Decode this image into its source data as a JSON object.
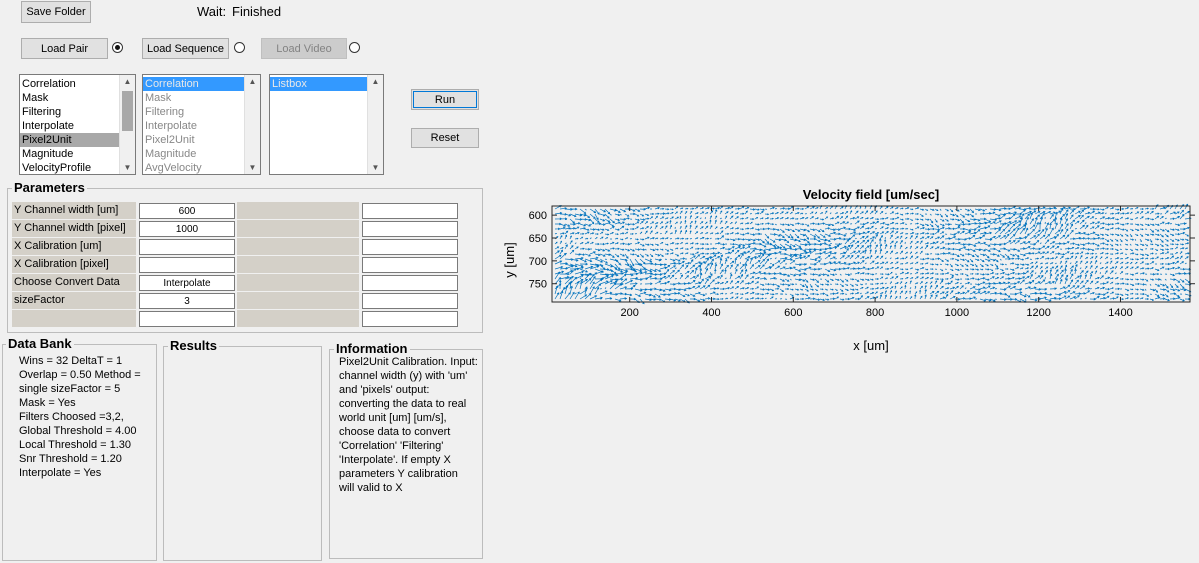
{
  "toolbar": {
    "save_folder_label": "Save Folder",
    "wait_label": "Wait:",
    "wait_status": "Finished",
    "load_pair_label": "Load Pair",
    "load_sequence_label": "Load Sequence",
    "load_video_label": "Load Video",
    "run_label": "Run",
    "reset_label": "Reset"
  },
  "lists": {
    "methods": [
      "Correlation",
      "Mask",
      "Filtering",
      "Interpolate",
      "Pixel2Unit",
      "Magnitude",
      "VelocityProfile"
    ],
    "methods_selected": "Pixel2Unit",
    "pipeline": [
      "Correlation",
      "Mask",
      "Filtering",
      "Interpolate",
      "Pixel2Unit",
      "Magnitude",
      "AvgVelocity"
    ],
    "pipeline_selected": "Correlation",
    "listbox": [
      "Listbox"
    ]
  },
  "parameters": {
    "title": "Parameters",
    "rows": [
      {
        "label": "Y Channel width [um]",
        "value": "600",
        "extra": ""
      },
      {
        "label": "Y Channel width [pixel]",
        "value": "1000",
        "extra": ""
      },
      {
        "label": "X Calibration [um]",
        "value": "",
        "extra": ""
      },
      {
        "label": "X Calibration [pixel]",
        "value": "",
        "extra": ""
      },
      {
        "label": "Choose Convert Data",
        "value": "Interpolate",
        "extra": ""
      },
      {
        "label": "sizeFactor",
        "value": "3",
        "extra": ""
      },
      {
        "label": "",
        "value": "",
        "extra": ""
      }
    ]
  },
  "data_bank": {
    "title": "Data Bank",
    "lines": [
      "Wins = 32  DeltaT = 1",
      "Overlap = 0.50  Method =",
      "single  sizeFactor = 5",
      "Mask = Yes",
      "Filters Choosed =3,2,",
      "Global Threshold = 4.00",
      "Local Threshold = 1.30",
      "Snr Threshold = 1.20",
      "Interpolate = Yes"
    ]
  },
  "results": {
    "title": "Results"
  },
  "information": {
    "title": "Information",
    "lines": [
      "Pixel2Unit Calibration. Input:",
      "channel width (y) with 'um'",
      "and 'pixels' output:",
      "converting the data to real",
      "world unit [um] [um/s],",
      "choose data to convert",
      "'Correlation' 'Filtering'",
      "'Interpolate'. If empty X",
      "parameters Y calibration",
      "will valid to X"
    ]
  },
  "chart_data": {
    "type": "quiver",
    "title": "Velocity field [um/sec]",
    "xlabel": "x [um]",
    "ylabel": "y [um]",
    "xlim": [
      10,
      1570
    ],
    "ylim": [
      580,
      790
    ],
    "xticks": [
      200,
      400,
      600,
      800,
      1000,
      1200,
      1400
    ],
    "yticks": [
      600,
      650,
      700,
      750
    ],
    "y_reversed": true,
    "grid": false,
    "series_color": "#0072bd"
  }
}
